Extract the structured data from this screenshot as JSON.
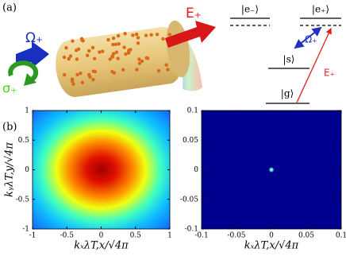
{
  "panel_a": {
    "label": "(a)",
    "drive_label": "E₊",
    "control_label": "Ω₊",
    "polarization_label": "σ₊",
    "levels": {
      "e_minus": "|e₋⟩",
      "e_plus": "|e₊⟩",
      "s": "|s⟩",
      "g": "|g⟩"
    },
    "coupling_label": "Ω₊",
    "probe_label": "E₊"
  },
  "panel_b": {
    "label": "(b)",
    "charts": [
      {
        "type": "heatmap",
        "xlabel": "kₓλT,x/√4π",
        "ylabel": "kᵧλT,y/√4π",
        "xlim": [
          -1,
          1
        ],
        "ylim": [
          -1,
          1
        ],
        "xticks": [
          -1,
          -0.5,
          0,
          0.5,
          1
        ],
        "yticks": [
          -1,
          -0.5,
          0,
          0.5,
          1
        ]
      },
      {
        "type": "heatmap",
        "xlabel": "kₓλT,x/√4π",
        "xlim": [
          -0.1,
          0.1
        ],
        "ylim": [
          -0.1,
          0.1
        ],
        "xticks": [
          -0.1,
          -0.05,
          0,
          0.05,
          0.1
        ],
        "yticks": [
          -0.1,
          -0.05,
          0,
          0.05,
          0.1
        ]
      }
    ]
  }
}
